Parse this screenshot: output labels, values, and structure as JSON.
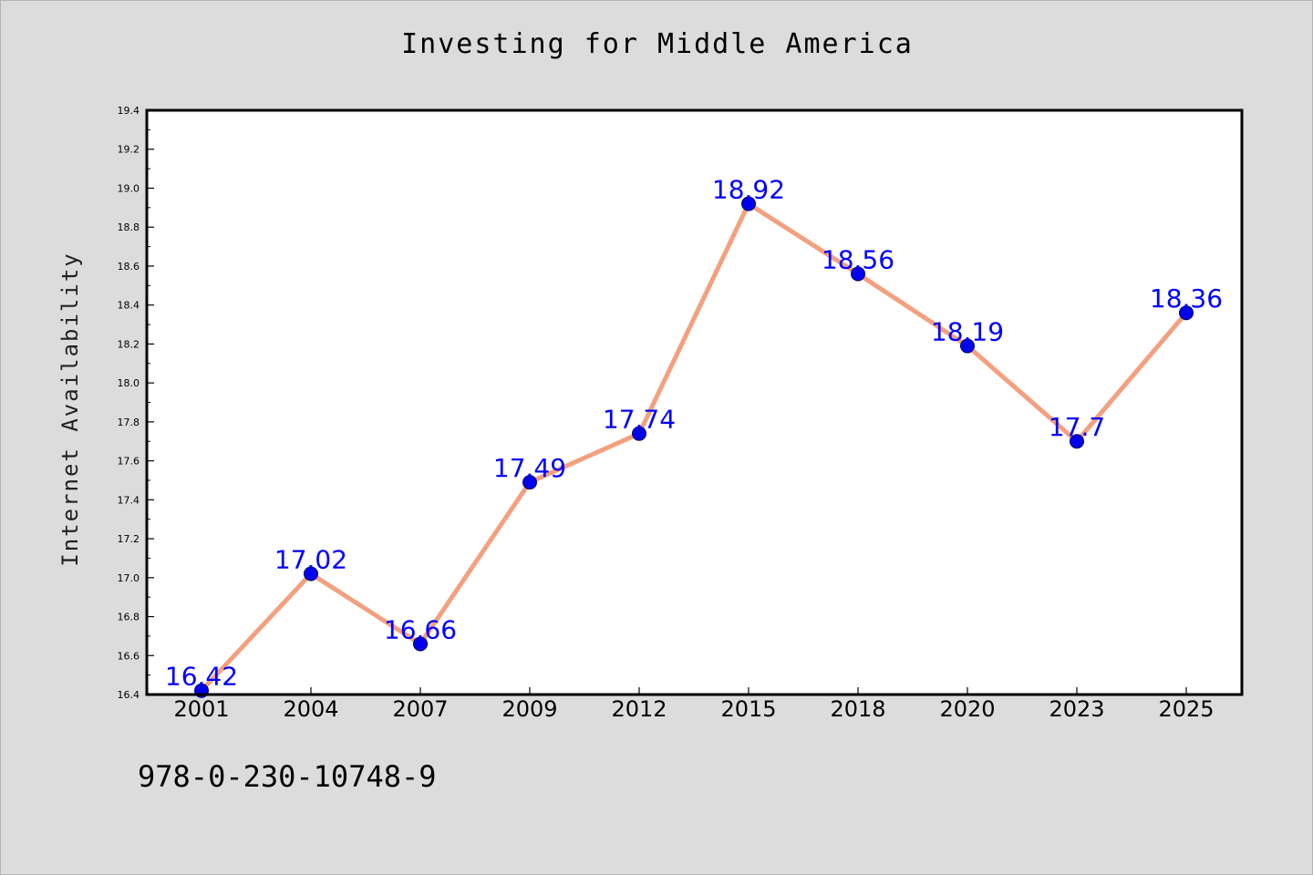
{
  "page": {
    "background_color": "#dcdcdc",
    "footer_text": "978-0-230-10748-9"
  },
  "chart_data": {
    "type": "line",
    "title": "Investing for Middle America",
    "xlabel": "",
    "ylabel": "Internet Availability",
    "categories": [
      "2001",
      "2004",
      "2007",
      "2009",
      "2012",
      "2015",
      "2018",
      "2020",
      "2023",
      "2025"
    ],
    "series": [
      {
        "values": [
          16.42,
          17.02,
          16.66,
          17.49,
          17.74,
          18.92,
          18.56,
          18.19,
          17.7,
          18.36
        ],
        "labels": [
          "16.42",
          "17.02",
          "16.66",
          "17.49",
          "17.74",
          "18.92",
          "18.56",
          "18.19",
          "17.7",
          "18.36"
        ],
        "line_color": "#f4a07f",
        "marker_color": "#0000ee",
        "label_color": "#0000ff"
      }
    ],
    "ylim": [
      16.4,
      19.4
    ],
    "yticks": [
      "16.4",
      "16.6",
      "16.8",
      "17.0",
      "17.2",
      "17.4",
      "17.6",
      "17.8",
      "18.0",
      "18.2",
      "18.4",
      "18.6",
      "18.8",
      "19.0",
      "19.2",
      "19.4"
    ],
    "grid": false,
    "legend": "none"
  }
}
